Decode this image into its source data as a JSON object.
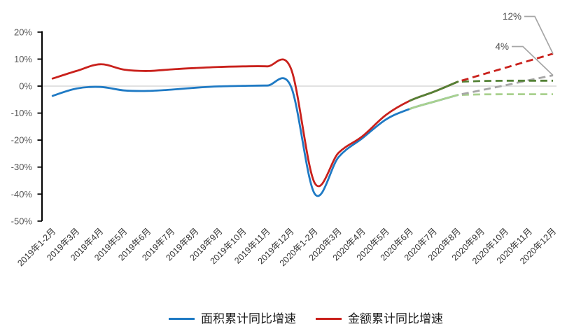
{
  "chart_data": {
    "type": "line",
    "unit": "%",
    "grid": "horizontal-zero-only",
    "legend_position": "bottom-center",
    "categories": [
      "2019年1-2月",
      "2019年3月",
      "2019年4月",
      "2019年5月",
      "2019年6月",
      "2019年7月",
      "2019年8月",
      "2019年9月",
      "2019年10月",
      "2019年11月",
      "2019年12月",
      "2020年1-2月",
      "2020年3月",
      "2020年4月",
      "2020年5月",
      "2020年6月",
      "2020年7月",
      "2020年8月",
      "2020年9月",
      "2020年10月",
      "2020年11月",
      "2020年12月"
    ],
    "y_axis": {
      "min": -50,
      "max": 20,
      "ticks": [
        20,
        10,
        0,
        -10,
        -20,
        -30,
        -40,
        -50
      ],
      "tick_labels": [
        "20%",
        "10%",
        "0%",
        "-10%",
        "-20%",
        "-30%",
        "-40%",
        "-50%"
      ],
      "gridlines": [
        0
      ]
    },
    "series": [
      {
        "id": "area-actual",
        "color": "#1F7AC4",
        "dash": "solid",
        "smooth": true,
        "values": [
          -3.6,
          -0.9,
          -0.3,
          -1.6,
          -1.8,
          -1.3,
          -0.6,
          -0.1,
          0.1,
          0.2,
          -0.1,
          -39.9,
          -26.3,
          -19.3,
          -12.3,
          -8.4,
          -5.8,
          -3.3,
          null,
          null,
          null,
          null
        ]
      },
      {
        "id": "amount-actual",
        "color": "#C9211C",
        "dash": "solid",
        "smooth": true,
        "values": [
          2.8,
          5.6,
          8.1,
          6.1,
          5.6,
          6.2,
          6.7,
          7.1,
          7.3,
          7.3,
          6.5,
          -35.9,
          -24.7,
          -18.6,
          -10.6,
          -5.4,
          -2.1,
          1.6,
          null,
          null,
          null,
          null
        ]
      },
      {
        "id": "area-scenario-solid",
        "color": "#A9D18E",
        "dash": "solid",
        "smooth": true,
        "overlay_of": "area-actual",
        "from_index": 15,
        "values": null
      },
      {
        "id": "amount-scenario-solid",
        "color": "#538135",
        "dash": "solid",
        "smooth": true,
        "overlay_of": "amount-actual",
        "from_index": 15,
        "values": null
      },
      {
        "id": "area-forecast-low",
        "color": "#A9D18E",
        "dash": "dashed",
        "smooth": false,
        "values": [
          null,
          null,
          null,
          null,
          null,
          null,
          null,
          null,
          null,
          null,
          null,
          null,
          null,
          null,
          null,
          null,
          null,
          -3.3,
          -3.05,
          -3.0,
          -3.0,
          -3.0
        ]
      },
      {
        "id": "area-forecast-high",
        "color": "#A6A6A6",
        "dash": "dashed",
        "smooth": false,
        "values": [
          null,
          null,
          null,
          null,
          null,
          null,
          null,
          null,
          null,
          null,
          null,
          null,
          null,
          null,
          null,
          null,
          null,
          -3.3,
          -1.5,
          0.3,
          2.2,
          4.0
        ]
      },
      {
        "id": "amount-forecast-low",
        "color": "#538135",
        "dash": "dashed",
        "smooth": false,
        "values": [
          null,
          null,
          null,
          null,
          null,
          null,
          null,
          null,
          null,
          null,
          null,
          null,
          null,
          null,
          null,
          null,
          null,
          1.6,
          1.9,
          2.0,
          2.0,
          2.0
        ]
      },
      {
        "id": "amount-forecast-high",
        "color": "#C9211C",
        "dash": "dashed",
        "smooth": false,
        "values": [
          null,
          null,
          null,
          null,
          null,
          null,
          null,
          null,
          null,
          null,
          null,
          null,
          null,
          null,
          null,
          null,
          null,
          1.6,
          4.2,
          6.8,
          9.4,
          12.0
        ]
      }
    ],
    "annotations": [
      {
        "text": "12%",
        "series": "amount-forecast-high"
      },
      {
        "text": "4%",
        "series": "area-forecast-high"
      }
    ],
    "legend": [
      {
        "label": "面积累计同比增速",
        "color": "#1F7AC4"
      },
      {
        "label": "金额累计同比增速",
        "color": "#C9211C"
      }
    ],
    "colors": {
      "gridline": "#D9D9D9",
      "axis": "#000000",
      "y_tick_label": "#595959",
      "x_tick_label": "#333333",
      "annotation_text": "#4d4d4d",
      "annotation_leader": "#A6A6A6"
    }
  }
}
